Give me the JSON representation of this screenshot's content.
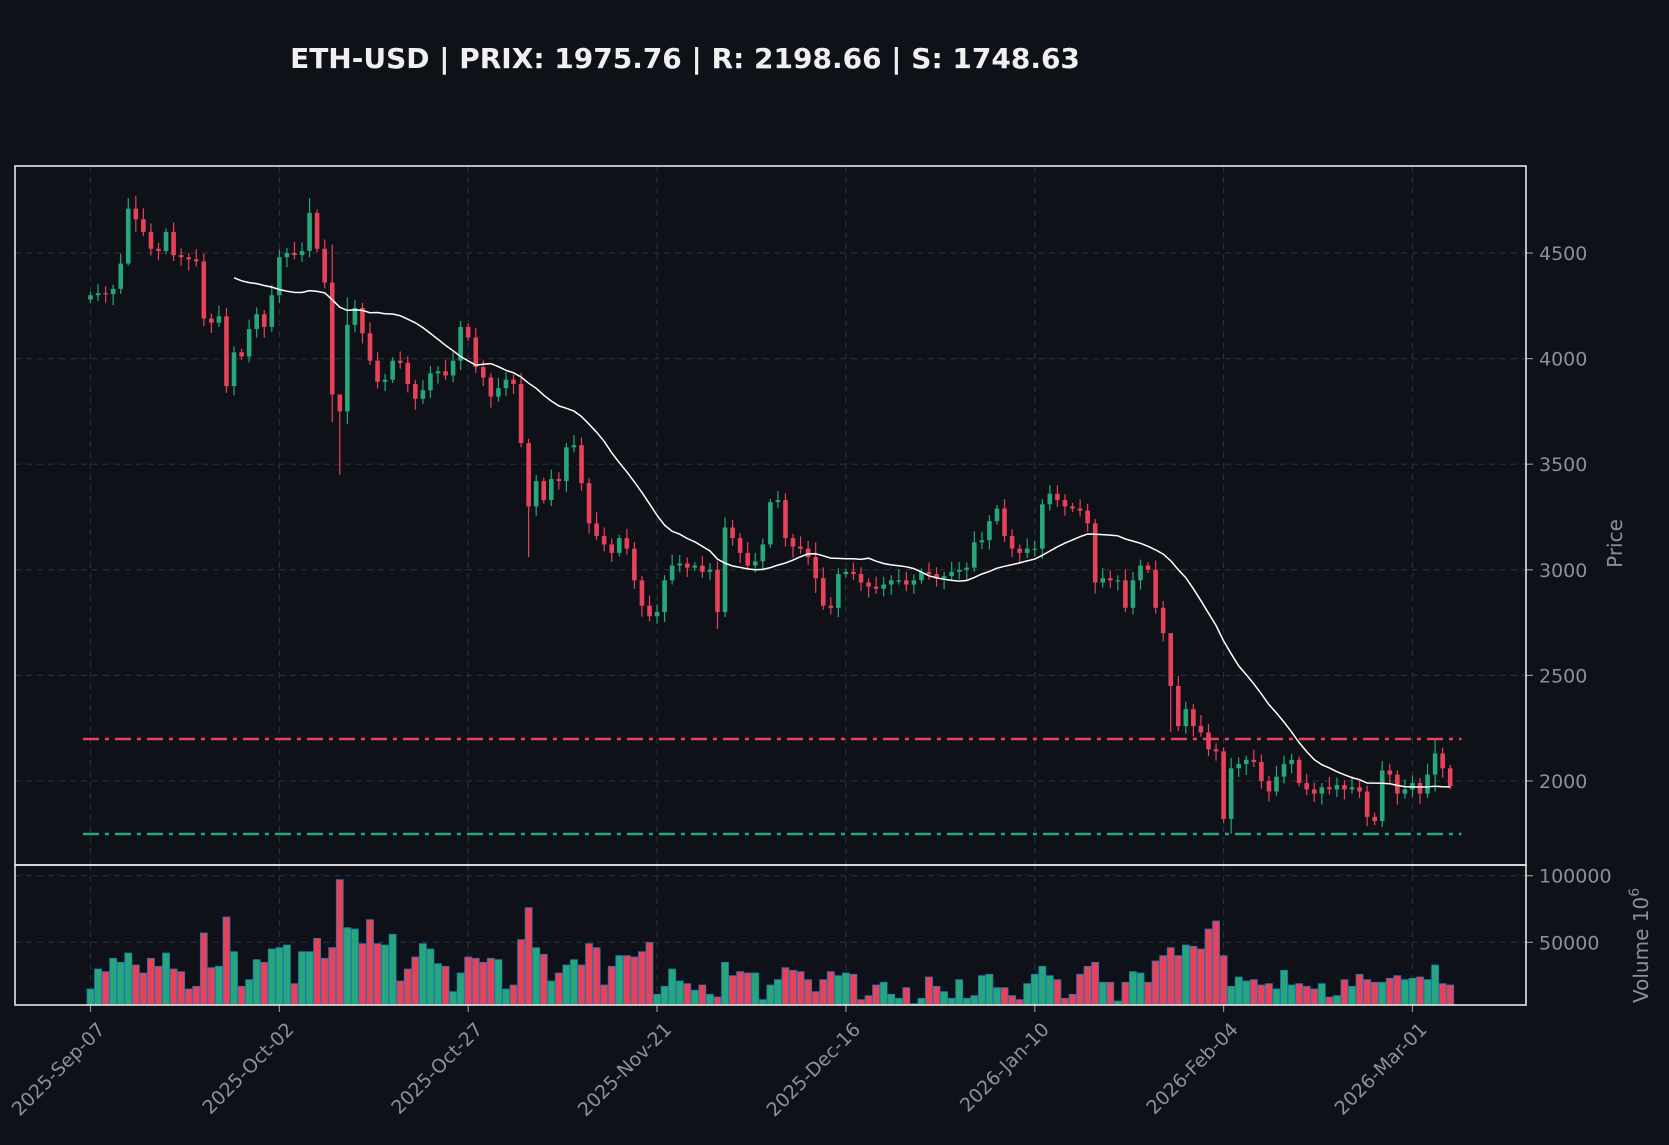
{
  "title": "ETH-USD | PRIX: 1975.76 | R: 2198.66 | S: 1748.63",
  "chart_data": {
    "type": "candlestick",
    "title": "ETH-USD | PRIX: 1975.76 | R: 2198.66 | S: 1748.63",
    "symbol": "ETH-USD",
    "price": 1975.76,
    "resistance": 2198.66,
    "support": 1748.63,
    "start_date": "2025-09-07",
    "interval": "1 day",
    "ma_period": 20,
    "price_ylabel": "Price",
    "volume_ylabel": "Volume  10^6",
    "volume_ylabel_main": "Volume",
    "volume_ylabel_exp": "10",
    "volume_ylabel_sup": "6",
    "price_ylim": [
      1602,
      4912
    ],
    "volume_ylim": [
      3000,
      108000
    ],
    "price_ticks": [
      2000,
      2500,
      3000,
      3500,
      4000,
      4500
    ],
    "volume_ticks": [
      50000,
      100000
    ],
    "x_ticks": [
      {
        "index": 0,
        "label": "2025-Sep-07"
      },
      {
        "index": 25,
        "label": "2025-Oct-02"
      },
      {
        "index": 50,
        "label": "2025-Oct-27"
      },
      {
        "index": 75,
        "label": "2025-Nov-21"
      },
      {
        "index": 100,
        "label": "2025-Dec-16"
      },
      {
        "index": 125,
        "label": "2026-Jan-10"
      },
      {
        "index": 150,
        "label": "2026-Feb-04"
      },
      {
        "index": 175,
        "label": "2026-Mar-01"
      }
    ],
    "grid": true,
    "colors": {
      "background": "#0e1117",
      "up": "#26a67a",
      "down": "#e8425a",
      "ma": "#ffffff",
      "resistance": "#e8425a",
      "support": "#26a67a",
      "grid": "#2a2e37",
      "frame": "#e6e6e6",
      "volume_edge": "#1f77b4"
    },
    "first_open": 4280,
    "close": [
      4300,
      4310,
      4305,
      4330,
      4450,
      4710,
      4660,
      4600,
      4520,
      4510,
      4600,
      4490,
      4480,
      4470,
      4460,
      4190,
      4170,
      4200,
      3870,
      4030,
      4010,
      4140,
      4210,
      4150,
      4300,
      4480,
      4500,
      4490,
      4510,
      4690,
      4520,
      4360,
      3830,
      3750,
      4160,
      4240,
      4120,
      3990,
      3890,
      3900,
      3990,
      3980,
      3880,
      3810,
      3850,
      3930,
      3940,
      3920,
      3990,
      4150,
      4100,
      3960,
      3910,
      3820,
      3860,
      3900,
      3880,
      3600,
      3300,
      3420,
      3330,
      3430,
      3420,
      3580,
      3590,
      3410,
      3220,
      3160,
      3120,
      3080,
      3150,
      3100,
      2950,
      2830,
      2780,
      2800,
      2950,
      3020,
      3030,
      3010,
      3020,
      2990,
      3000,
      2800,
      3200,
      3150,
      3080,
      3020,
      3040,
      3120,
      3320,
      3330,
      3150,
      3110,
      3100,
      3060,
      2960,
      2830,
      2820,
      2980,
      2990,
      2980,
      2940,
      2920,
      2910,
      2930,
      2950,
      2950,
      2930,
      2950,
      2990,
      2980,
      2960,
      2970,
      2990,
      3000,
      3010,
      3130,
      3140,
      3230,
      3290,
      3160,
      3100,
      3080,
      3100,
      3100,
      3310,
      3360,
      3330,
      3300,
      3290,
      3280,
      3220,
      2940,
      2960,
      2950,
      2950,
      2820,
      2950,
      3020,
      3000,
      2820,
      2700,
      2450,
      2260,
      2340,
      2260,
      2230,
      2150,
      2140,
      1820,
      2060,
      2080,
      2100,
      2090,
      2000,
      1950,
      2020,
      2080,
      2100,
      1990,
      1960,
      1940,
      1970,
      1960,
      1980,
      1960,
      1970,
      1950,
      1830,
      1810,
      2050,
      2030,
      1940,
      1960,
      1990,
      1940,
      2030,
      2130,
      2060,
      1976
    ],
    "wick_default": 40,
    "high_low_overrides": {
      "5": [
        4760,
        4440
      ],
      "6": [
        4770,
        4600
      ],
      "29": [
        4760,
        4480
      ],
      "32": [
        4540,
        3700
      ],
      "33": [
        3830,
        3450
      ],
      "34": [
        4290,
        3690
      ],
      "58": [
        3620,
        3060
      ],
      "83": [
        3040,
        2720
      ],
      "96": [
        3130,
        2890
      ],
      "127": [
        3400,
        3280
      ],
      "143": [
        2700,
        2230
      ],
      "150": [
        2160,
        1800
      ],
      "151": [
        2110,
        1750
      ],
      "170": [
        1850,
        1790
      ],
      "178": [
        2200,
        1950
      ]
    },
    "volume": [
      15000,
      30000,
      28000,
      38000,
      35000,
      42000,
      33000,
      27000,
      38000,
      32000,
      42000,
      30000,
      28000,
      15000,
      17000,
      57000,
      31000,
      32000,
      69000,
      43000,
      17000,
      22000,
      37000,
      35000,
      45000,
      46000,
      48000,
      19000,
      43000,
      43000,
      53000,
      38000,
      46000,
      97000,
      61000,
      60000,
      49000,
      67000,
      49000,
      48000,
      56000,
      21000,
      30000,
      39000,
      49000,
      45000,
      34000,
      32000,
      13000,
      27000,
      39000,
      38000,
      35000,
      38000,
      37000,
      15000,
      18000,
      52000,
      76000,
      46000,
      41000,
      21000,
      27000,
      33000,
      37000,
      33000,
      49000,
      46000,
      18000,
      32000,
      40000,
      40000,
      39000,
      43000,
      50000,
      11000,
      17000,
      30000,
      21000,
      19000,
      14000,
      18000,
      11000,
      9000,
      35000,
      25000,
      28000,
      27000,
      27000,
      7000,
      18000,
      22000,
      31000,
      29000,
      28000,
      22000,
      13000,
      22000,
      28000,
      25000,
      27000,
      26000,
      7000,
      10000,
      18000,
      20000,
      11000,
      8000,
      16000,
      4000,
      8000,
      24000,
      17000,
      13000,
      8000,
      22000,
      8000,
      10000,
      25000,
      26000,
      16000,
      16000,
      10000,
      7000,
      19000,
      26000,
      32000,
      25000,
      22000,
      8000,
      11000,
      26000,
      32000,
      35000,
      20000,
      20000,
      6000,
      20000,
      28000,
      27000,
      20000,
      36000,
      40000,
      46000,
      40000,
      48000,
      47000,
      45000,
      60000,
      66000,
      40000,
      17000,
      24000,
      21000,
      22000,
      18000,
      19000,
      15000,
      29000,
      18000,
      19000,
      17000,
      15000,
      19000,
      9000,
      10000,
      22000,
      17000,
      26000,
      22000,
      20000,
      20000,
      23000,
      25000,
      22000,
      23000,
      24000,
      22000,
      33000,
      19000,
      18000
    ]
  }
}
